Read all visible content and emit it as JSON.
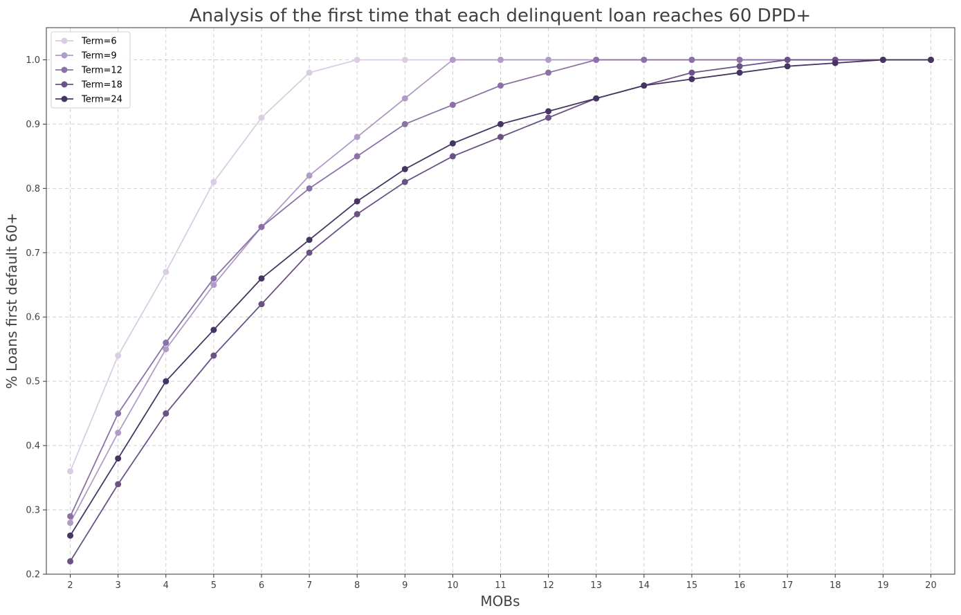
{
  "chart_data": {
    "type": "line",
    "title": "Analysis of the first time that each delinquent loan reaches 60 DPD+",
    "xlabel": "MOBs",
    "ylabel": "% Loans first default 60+",
    "x": [
      2,
      3,
      4,
      5,
      6,
      7,
      8,
      9,
      10,
      11,
      12,
      13,
      14,
      15,
      16,
      17,
      18,
      19,
      20
    ],
    "xlim": [
      1.5,
      20.5
    ],
    "ylim": [
      0.2,
      1.05
    ],
    "yticks": [
      0.2,
      0.3,
      0.4,
      0.5,
      0.6,
      0.7,
      0.8,
      0.9,
      1.0
    ],
    "ytick_labels": [
      "0.2",
      "0.3",
      "0.4",
      "0.5",
      "0.6",
      "0.7",
      "0.8",
      "0.9",
      "1.0"
    ],
    "grid": true,
    "legend_position": "top-left",
    "series": [
      {
        "name": "Term=6",
        "color": "#d9cce3",
        "x": [
          2,
          3,
          4,
          5,
          6,
          7,
          8,
          9,
          10,
          11,
          12,
          13,
          14,
          15,
          16,
          17,
          18,
          19,
          20
        ],
        "values": [
          0.36,
          0.54,
          0.67,
          0.81,
          0.91,
          0.98,
          1.0,
          1.0,
          1.0,
          1.0,
          1.0,
          1.0,
          1.0,
          1.0,
          1.0,
          1.0,
          1.0,
          1.0,
          1.0
        ]
      },
      {
        "name": "Term=9",
        "color": "#b19cc6",
        "x": [
          2,
          3,
          4,
          5,
          6,
          7,
          8,
          9,
          10,
          11,
          12,
          13,
          14,
          15,
          16,
          17,
          18,
          19,
          20
        ],
        "values": [
          0.28,
          0.42,
          0.55,
          0.65,
          0.74,
          0.82,
          0.88,
          0.94,
          1.0,
          1.0,
          1.0,
          1.0,
          1.0,
          1.0,
          1.0,
          1.0,
          1.0,
          1.0,
          1.0
        ]
      },
      {
        "name": "Term=12",
        "color": "#8b71a5",
        "x": [
          2,
          3,
          4,
          5,
          6,
          7,
          8,
          9,
          10,
          11,
          12,
          13,
          14,
          15,
          16,
          17,
          18,
          19,
          20
        ],
        "values": [
          0.29,
          0.45,
          0.56,
          0.66,
          0.74,
          0.8,
          0.85,
          0.9,
          0.93,
          0.96,
          0.98,
          1.0,
          1.0,
          1.0,
          1.0,
          1.0,
          1.0,
          1.0,
          1.0
        ]
      },
      {
        "name": "Term=18",
        "color": "#6a5284",
        "x": [
          2,
          3,
          4,
          5,
          6,
          7,
          8,
          9,
          10,
          11,
          12,
          13,
          14,
          15,
          16,
          17,
          18,
          19,
          20
        ],
        "values": [
          0.22,
          0.34,
          0.45,
          0.54,
          0.62,
          0.7,
          0.76,
          0.81,
          0.85,
          0.88,
          0.91,
          0.94,
          0.96,
          0.98,
          0.99,
          1.0,
          1.0,
          1.0,
          1.0
        ]
      },
      {
        "name": "Term=24",
        "color": "#463462",
        "x": [
          2,
          3,
          4,
          5,
          6,
          7,
          8,
          9,
          10,
          11,
          12,
          13,
          14,
          15,
          16,
          17,
          18,
          19,
          20
        ],
        "values": [
          0.26,
          0.38,
          0.5,
          0.58,
          0.66,
          0.72,
          0.78,
          0.83,
          0.87,
          0.9,
          0.92,
          0.94,
          0.96,
          0.97,
          0.98,
          0.99,
          0.995,
          1.0,
          1.0
        ]
      }
    ]
  }
}
